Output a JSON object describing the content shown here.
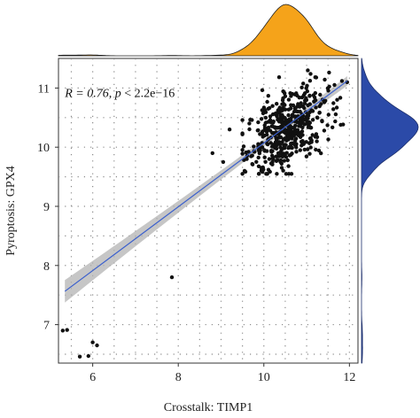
{
  "chart_data": {
    "type": "scatter",
    "title": "",
    "xlabel": "Crosstalk: TIMP1",
    "ylabel": "Pyroptosis: GPX4",
    "xlim": [
      5.2,
      12.2
    ],
    "ylim": [
      6.35,
      11.5
    ],
    "xticks": [
      "6",
      "8",
      "10",
      "12"
    ],
    "yticks": [
      "7",
      "8",
      "9",
      "10",
      "11"
    ],
    "grid": true,
    "annotation": {
      "r_part": "R = 0.76, ",
      "p_var": "p",
      "p_rest": " < 2.2e−16"
    },
    "regression": {
      "x_start": 5.35,
      "x_end": 11.95,
      "slope": 0.539,
      "intercept": 4.68
    },
    "cluster": {
      "x_mean": 10.55,
      "x_sd": 0.48,
      "y_mean": 10.3,
      "y_sd": 0.32,
      "n": 480
    },
    "outliers": [
      {
        "x": 5.3,
        "y": 6.9
      },
      {
        "x": 5.4,
        "y": 6.91
      },
      {
        "x": 5.7,
        "y": 6.46
      },
      {
        "x": 5.9,
        "y": 6.47
      },
      {
        "x": 6.0,
        "y": 6.7
      },
      {
        "x": 6.1,
        "y": 6.65
      },
      {
        "x": 7.85,
        "y": 7.8
      },
      {
        "x": 8.8,
        "y": 9.9
      },
      {
        "x": 9.05,
        "y": 9.75
      },
      {
        "x": 9.2,
        "y": 10.3
      },
      {
        "x": 9.55,
        "y": 9.6
      },
      {
        "x": 9.6,
        "y": 9.8
      }
    ],
    "colors": {
      "points": "#111111",
      "line": "#3a5fcd",
      "ribbon": "#b3b3b3",
      "x_density": "#f5a31a",
      "y_density": "#2b4aa8",
      "grid": "#8a8a8a"
    }
  }
}
